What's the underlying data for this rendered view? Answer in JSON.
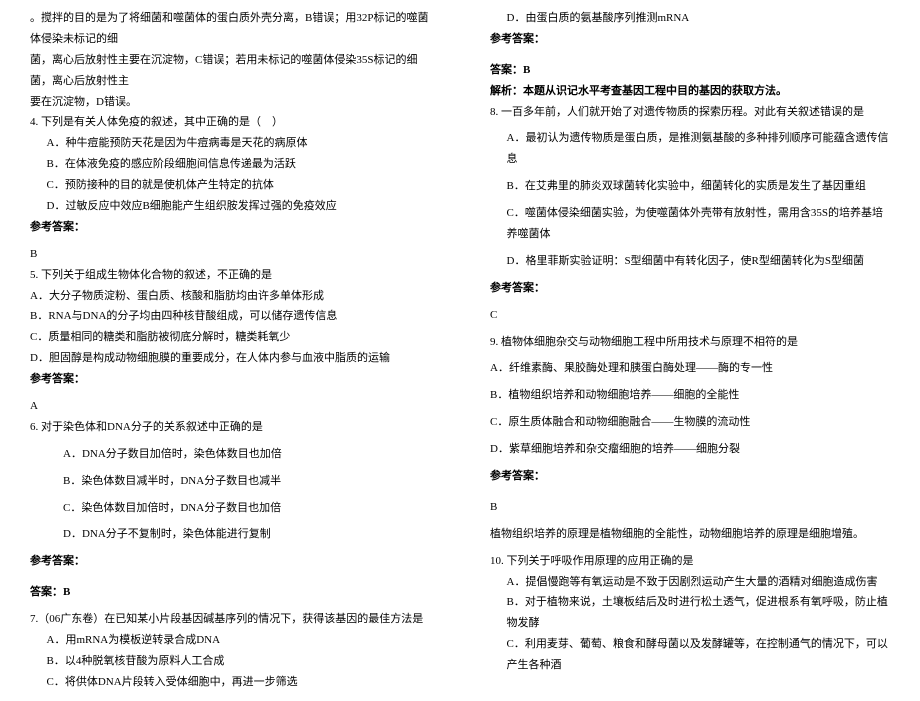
{
  "left": {
    "intro1": "。搅拌的目的是为了将细菌和噬菌体的蛋白质外壳分离，B错误；用32P标记的噬菌体侵染未标记的细",
    "intro2": "菌，离心后放射性主要在沉淀物，C错误；若用未标记的噬菌体侵染35S标记的细菌，离心后放射性主",
    "intro3": "要在沉淀物，D错误。",
    "q4": "4. 下列是有关人体免疫的叙述，其中正确的是（　）",
    "q4a": "A．种牛痘能预防天花是因为牛痘病毒是天花的病原体",
    "q4b": "B．在体液免疫的感应阶段细胞间信息传递最为活跃",
    "q4c": "C．预防接种的目的就是使机体产生特定的抗体",
    "q4d": "D．过敏反应中效应B细胞能产生组织胺发挥过强的免疫效应",
    "ref": "参考答案：",
    "q4ans": "B",
    "q5": "5. 下列关于组成生物体化合物的叙述，不正确的是",
    "q5a": "A．大分子物质淀粉、蛋白质、核酸和脂肪均由许多单体形成",
    "q5b": "B．RNA与DNA的分子均由四种核苷酸组成，可以储存遗传信息",
    "q5c": "C．质量相同的糖类和脂肪被彻底分解时，糖类耗氧少",
    "q5d": "D．胆固醇是构成动物细胞膜的重要成分，在人体内参与血液中脂质的运输",
    "q5ans": "A",
    "q6": "6. 对于染色体和DNA分子的关系叙述中正确的是",
    "q6a": "A．DNA分子数目加倍时，染色体数目也加倍",
    "q6b": "B．染色体数目减半时，DNA分子数目也减半",
    "q6c": "C．染色体数目加倍时，DNA分子数目也加倍",
    "q6d": "D．DNA分子不复制时，染色体能进行复制",
    "answer": "答案：B",
    "q7": "7.（06广东卷）在已知某小片段基因碱基序列的情况下，获得该基因的最佳方法是",
    "q7a": "A．用mRNA为模板逆转录合成DNA",
    "q7b": "B．以4种脱氧核苷酸为原料人工合成",
    "q7c": "C．将供体DNA片段转入受体细胞中，再进一步筛选"
  },
  "right": {
    "q7d": "D．由蛋白质的氨基酸序列推测mRNA",
    "ref": "参考答案：",
    "answerB": "答案：B",
    "q7explain": "解析：本题从识记水平考查基因工程中目的基因的获取方法。",
    "q8": "8. 一百多年前，人们就开始了对遗传物质的探索历程。对此有关叙述错误的是",
    "q8a": "A．最初认为遗传物质是蛋白质，是推测氨基酸的多种排列顺序可能蕴含遗传信息",
    "q8b": "B．在艾弗里的肺炎双球菌转化实验中，细菌转化的实质是发生了基因重组",
    "q8c": "C．噬菌体侵染细菌实验，为使噬菌体外壳带有放射性，需用含35S的培养基培养噬菌体",
    "q8d": "D．格里菲斯实验证明：S型细菌中有转化因子，使R型细菌转化为S型细菌",
    "q8ans": "C",
    "q9": "9. 植物体细胞杂交与动物细胞工程中所用技术与原理不相符的是",
    "q9a": "A．纤维素酶、果胶酶处理和胰蛋白酶处理——酶的专一性",
    "q9b": "B．植物组织培养和动物细胞培养——细胞的全能性",
    "q9c": "C．原生质体融合和动物细胞融合——生物膜的流动性",
    "q9d": "D．紫草细胞培养和杂交瘤细胞的培养——细胞分裂",
    "q9ans": "B",
    "q9explain": "植物组织培养的原理是植物细胞的全能性，动物细胞培养的原理是细胞增殖。",
    "q10": "10. 下列关于呼吸作用原理的应用正确的是",
    "q10a": "A．提倡慢跑等有氧运动是不致于因剧烈运动产生大量的酒精对细胞造成伤害",
    "q10b": "B．对于植物来说，土壤板结后及时进行松土透气，促进根系有氧呼吸，防止植物发酵",
    "q10c": "C．利用麦芽、葡萄、粮食和酵母菌以及发酵罐等，在控制通气的情况下，可以产生各种酒"
  }
}
